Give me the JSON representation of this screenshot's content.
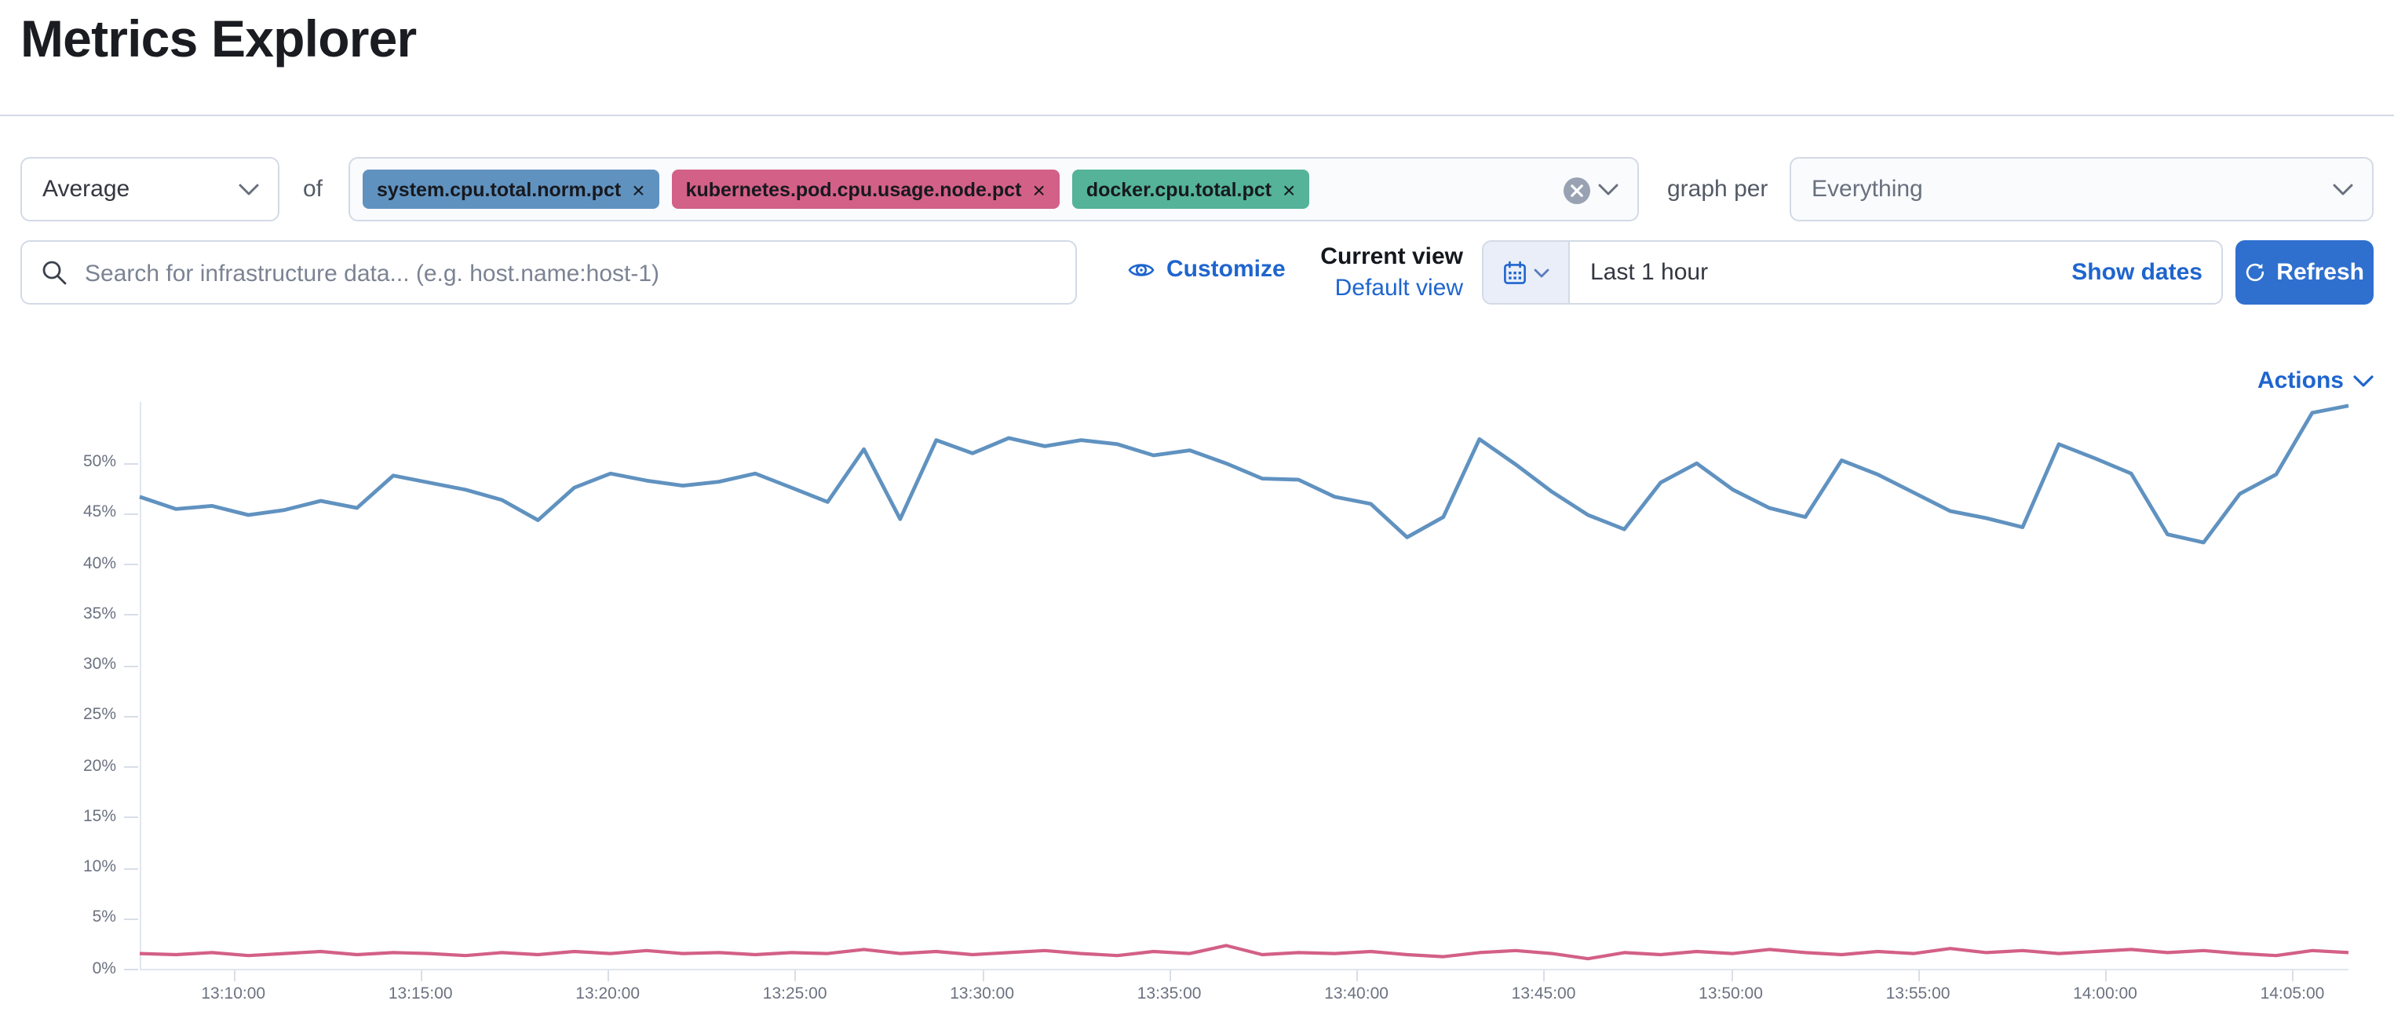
{
  "page": {
    "title": "Metrics Explorer"
  },
  "toolbar": {
    "aggregation_value": "Average",
    "of_label": "of",
    "metrics": [
      {
        "label": "system.cpu.total.norm.pct",
        "color": "#6092C0"
      },
      {
        "label": "kubernetes.pod.cpu.usage.node.pct",
        "color": "#D36086"
      },
      {
        "label": "docker.cpu.total.pct",
        "color": "#54B399"
      }
    ],
    "remove_glyph": "×",
    "graph_per_label": "graph per",
    "group_by_value": "Everything"
  },
  "search": {
    "placeholder": "Search for infrastructure data... (e.g. host.name:host-1)"
  },
  "view_controls": {
    "customize_label": "Customize",
    "current_view_label": "Current view",
    "default_view_label": "Default view"
  },
  "time_picker": {
    "range_label": "Last 1 hour",
    "show_dates_label": "Show dates",
    "refresh_label": "Refresh"
  },
  "actions_label": "Actions",
  "icons": {
    "search": "magnifier",
    "customize": "eye",
    "time": "calendar with chevron-down",
    "refresh": "circular refresh arrow",
    "combobox_clear": "cross in gray circle",
    "dropdowns": "chevron-down"
  },
  "colors": {
    "accent_link_blue": "#1e65ce",
    "refresh_button_blue": "#2f70ce",
    "series_blue": "#6092C0",
    "series_pink": "#D36086",
    "badge_green": "#54B399",
    "control_border": "#d3dae6",
    "text_dark": "#343741",
    "text_subdued": "#69707d"
  },
  "chart_data": {
    "type": "line",
    "title": "",
    "grid": "none",
    "legend": "none",
    "ylabel": "",
    "xlabel": "",
    "ylim": [
      0,
      56
    ],
    "y_ticks_pct": [
      0,
      5,
      10,
      15,
      20,
      25,
      30,
      35,
      40,
      45,
      50
    ],
    "x_span_min": 59,
    "x_ticks": [
      {
        "t": 2.5,
        "label": "13:10:00"
      },
      {
        "t": 7.5,
        "label": "13:15:00"
      },
      {
        "t": 12.5,
        "label": "13:20:00"
      },
      {
        "t": 17.5,
        "label": "13:25:00"
      },
      {
        "t": 22.5,
        "label": "13:30:00"
      },
      {
        "t": 27.5,
        "label": "13:35:00"
      },
      {
        "t": 32.5,
        "label": "13:40:00"
      },
      {
        "t": 37.5,
        "label": "13:45:00"
      },
      {
        "t": 42.5,
        "label": "13:50:00"
      },
      {
        "t": 47.5,
        "label": "13:55:00"
      },
      {
        "t": 52.5,
        "label": "14:00:00"
      },
      {
        "t": 57.5,
        "label": "14:05:00"
      }
    ],
    "series": [
      {
        "name": "system.cpu.total.norm.pct (avg)",
        "color": "#6092C0",
        "unit": "%",
        "values": [
          46.6,
          45.4,
          45.7,
          44.8,
          45.3,
          46.2,
          45.5,
          48.7,
          48.0,
          47.3,
          46.3,
          44.3,
          47.5,
          48.9,
          48.2,
          47.7,
          48.1,
          48.9,
          47.5,
          46.1,
          51.3,
          44.4,
          52.2,
          50.9,
          52.4,
          51.6,
          52.2,
          51.8,
          50.7,
          51.2,
          49.9,
          48.4,
          48.3,
          46.6,
          45.9,
          42.6,
          44.6,
          52.3,
          49.8,
          47.1,
          44.8,
          43.4,
          48.0,
          49.9,
          47.3,
          45.5,
          44.6,
          50.2,
          48.8,
          47.0,
          45.2,
          44.5,
          43.6,
          51.8,
          50.4,
          48.9,
          42.9,
          42.1,
          46.9,
          48.8,
          54.9,
          55.6
        ]
      },
      {
        "name": "kubernetes.pod.cpu.usage.node.pct (avg)",
        "color": "#D36086",
        "unit": "%",
        "values": [
          1.5,
          1.4,
          1.6,
          1.3,
          1.5,
          1.7,
          1.4,
          1.6,
          1.5,
          1.3,
          1.6,
          1.4,
          1.7,
          1.5,
          1.8,
          1.5,
          1.6,
          1.4,
          1.6,
          1.5,
          1.9,
          1.5,
          1.7,
          1.4,
          1.6,
          1.8,
          1.5,
          1.3,
          1.7,
          1.5,
          2.3,
          1.4,
          1.6,
          1.5,
          1.7,
          1.4,
          1.2,
          1.6,
          1.8,
          1.5,
          1.0,
          1.6,
          1.4,
          1.7,
          1.5,
          1.9,
          1.6,
          1.4,
          1.7,
          1.5,
          2.0,
          1.6,
          1.8,
          1.5,
          1.7,
          1.9,
          1.6,
          1.8,
          1.5,
          1.3,
          1.8,
          1.6
        ]
      }
    ]
  }
}
